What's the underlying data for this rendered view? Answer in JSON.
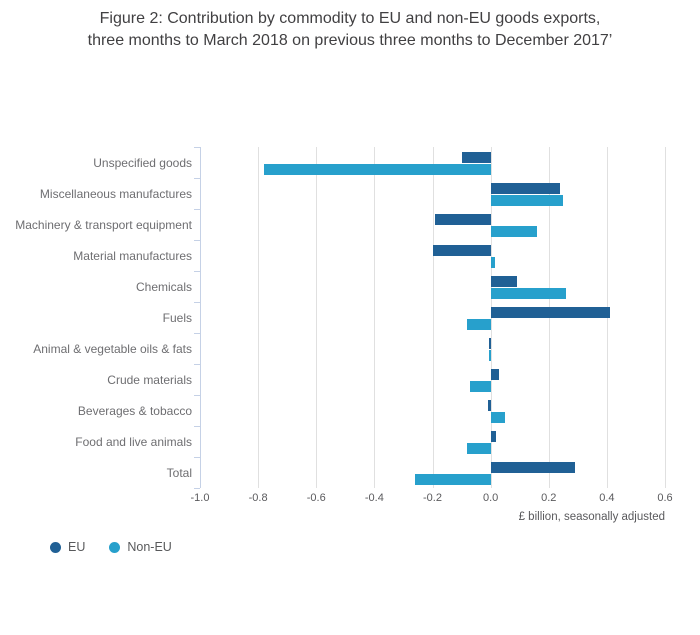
{
  "title": {
    "line1": "Figure 2: Contribution by commodity to EU and non-EU goods exports,",
    "line2": "three months to March 2018 on previous three months to December 2017’"
  },
  "chart_data": {
    "type": "bar",
    "orientation": "horizontal",
    "title": "Figure 2: Contribution by commodity to EU and non-EU goods exports, three months to March 2018 on previous three months to December 2017’",
    "categories": [
      "Unspecified goods",
      "Miscellaneous manufactures",
      "Machinery & transport equipment",
      "Material manufactures",
      "Chemicals",
      "Fuels",
      "Animal & vegetable oils & fats",
      "Crude materials",
      "Beverages & tobacco",
      "Food and live animals",
      "Total"
    ],
    "series": [
      {
        "name": "EU",
        "color": "#206095",
        "values": [
          -0.1,
          0.24,
          -0.19,
          -0.2,
          0.09,
          0.41,
          -0.005,
          0.03,
          -0.01,
          0.02,
          0.29
        ]
      },
      {
        "name": "Non-EU",
        "color": "#27A0CC",
        "values": [
          -0.78,
          0.25,
          0.16,
          0.015,
          0.26,
          -0.08,
          -0.005,
          -0.07,
          0.05,
          -0.08,
          -0.26
        ]
      }
    ],
    "xlabel": "£ billion, seasonally adjusted",
    "xlim": [
      -1.0,
      0.6
    ],
    "xticks": [
      -1.0,
      -0.8,
      -0.6,
      -0.4,
      -0.2,
      0.0,
      0.2,
      0.4,
      0.6
    ],
    "xtick_labels": [
      "-1.0",
      "-0.8",
      "-0.6",
      "-0.4",
      "-0.2",
      "0.0",
      "0.2",
      "0.4",
      "0.6"
    ],
    "grid": "vertical",
    "legend_position": "bottom-left"
  }
}
